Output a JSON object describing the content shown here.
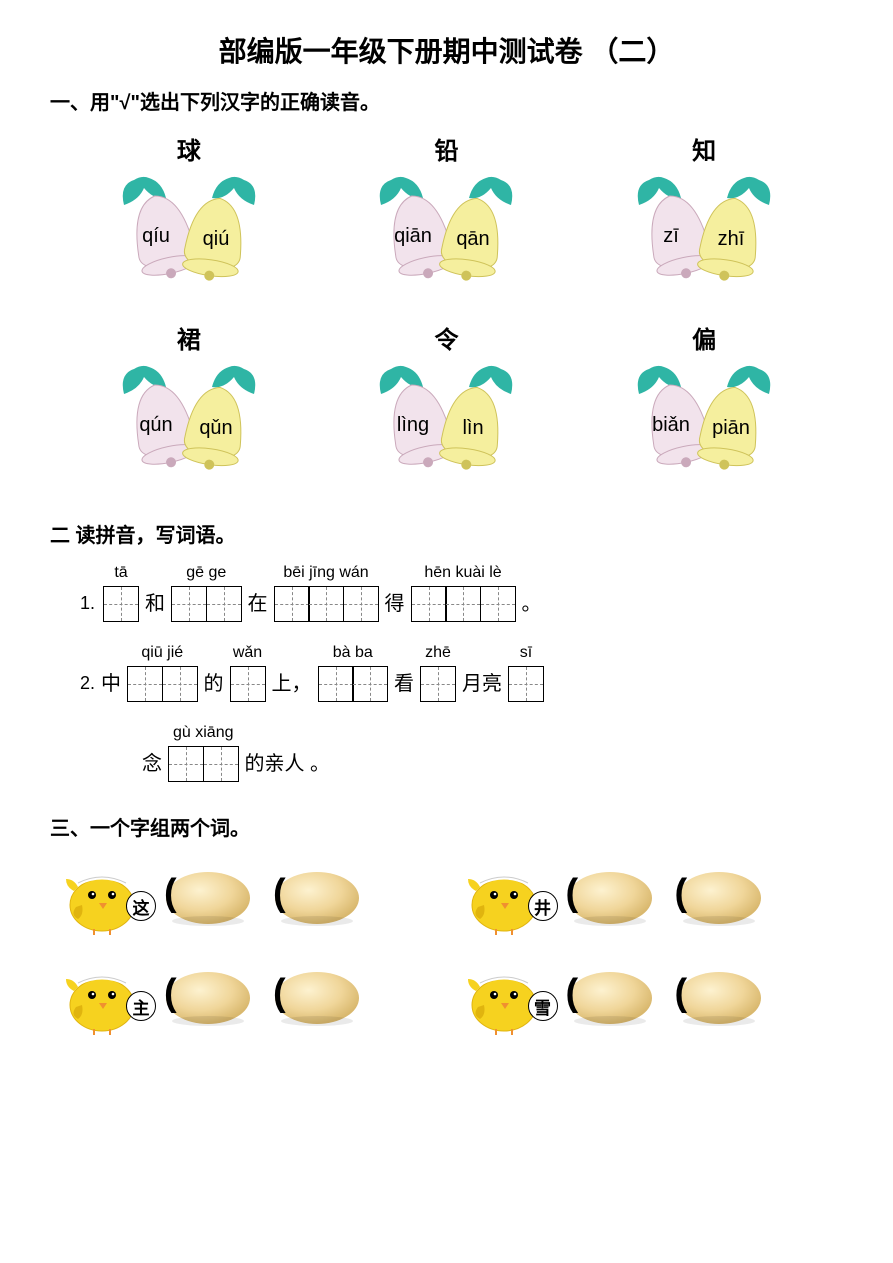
{
  "title": "部编版一年级下册期中测试卷 （二）",
  "q1": {
    "heading": "一、用\"√\"选出下列汉字的正确读音。",
    "items": [
      {
        "char": "球",
        "left": "qíu",
        "right": "qiú"
      },
      {
        "char": "铅",
        "left": "qiān",
        "right": "qān"
      },
      {
        "char": "知",
        "left": "zī",
        "right": "zhī"
      },
      {
        "char": "裙",
        "left": "qún",
        "right": "qǔn"
      },
      {
        "char": "令",
        "left": "lìng",
        "right": "lìn"
      },
      {
        "char": "偏",
        "left": "biǎn",
        "right": "piān"
      }
    ],
    "colors": {
      "leaf": "#2fb5a5",
      "leftBell": "#f2e3ec",
      "leftBellStroke": "#caa9bb",
      "rightBell": "#f5ef9e",
      "rightBellStroke": "#cfc35a"
    }
  },
  "q2": {
    "heading": "二   读拼音，写词语。",
    "line1": {
      "num": "1.",
      "parts": [
        {
          "type": "box",
          "pinyin": "tā",
          "count": 1
        },
        {
          "type": "text",
          "value": "和"
        },
        {
          "type": "box",
          "pinyin": "gē  ge",
          "count": 2
        },
        {
          "type": "text",
          "value": "在"
        },
        {
          "type": "box",
          "pinyin": "bēi jīng wán",
          "count": 3
        },
        {
          "type": "text",
          "value": "得"
        },
        {
          "type": "box",
          "pinyin": "hēn kuài lè",
          "count": 3
        },
        {
          "type": "text",
          "value": "。"
        }
      ]
    },
    "line2": {
      "num": "2.",
      "parts": [
        {
          "type": "text",
          "value": "中"
        },
        {
          "type": "box",
          "pinyin": "qiū jié",
          "count": 2
        },
        {
          "type": "text",
          "value": "的"
        },
        {
          "type": "box",
          "pinyin": "wǎn",
          "count": 1
        },
        {
          "type": "text",
          "value": "上，"
        },
        {
          "type": "box",
          "pinyin": "bà  ba",
          "count": 2
        },
        {
          "type": "text",
          "value": "看"
        },
        {
          "type": "box",
          "pinyin": "zhē",
          "count": 1
        },
        {
          "type": "text",
          "value": "月亮"
        },
        {
          "type": "box",
          "pinyin": "sī",
          "count": 1
        }
      ]
    },
    "line3": {
      "parts": [
        {
          "type": "text",
          "value": "念"
        },
        {
          "type": "box",
          "pinyin": "gù xiāng",
          "count": 2
        },
        {
          "type": "text",
          "value": "的亲人 。"
        }
      ]
    }
  },
  "q3": {
    "heading": "三、一个字组两个词。",
    "items": [
      {
        "char": "这"
      },
      {
        "char": "井"
      },
      {
        "char": "主"
      },
      {
        "char": "雪"
      }
    ],
    "colors": {
      "chickBody": "#f6d21f",
      "chickShade": "#e0b40f",
      "chickBeak": "#f09030",
      "eggLight": "#f0d69a",
      "eggDark": "#d9b86e"
    }
  }
}
